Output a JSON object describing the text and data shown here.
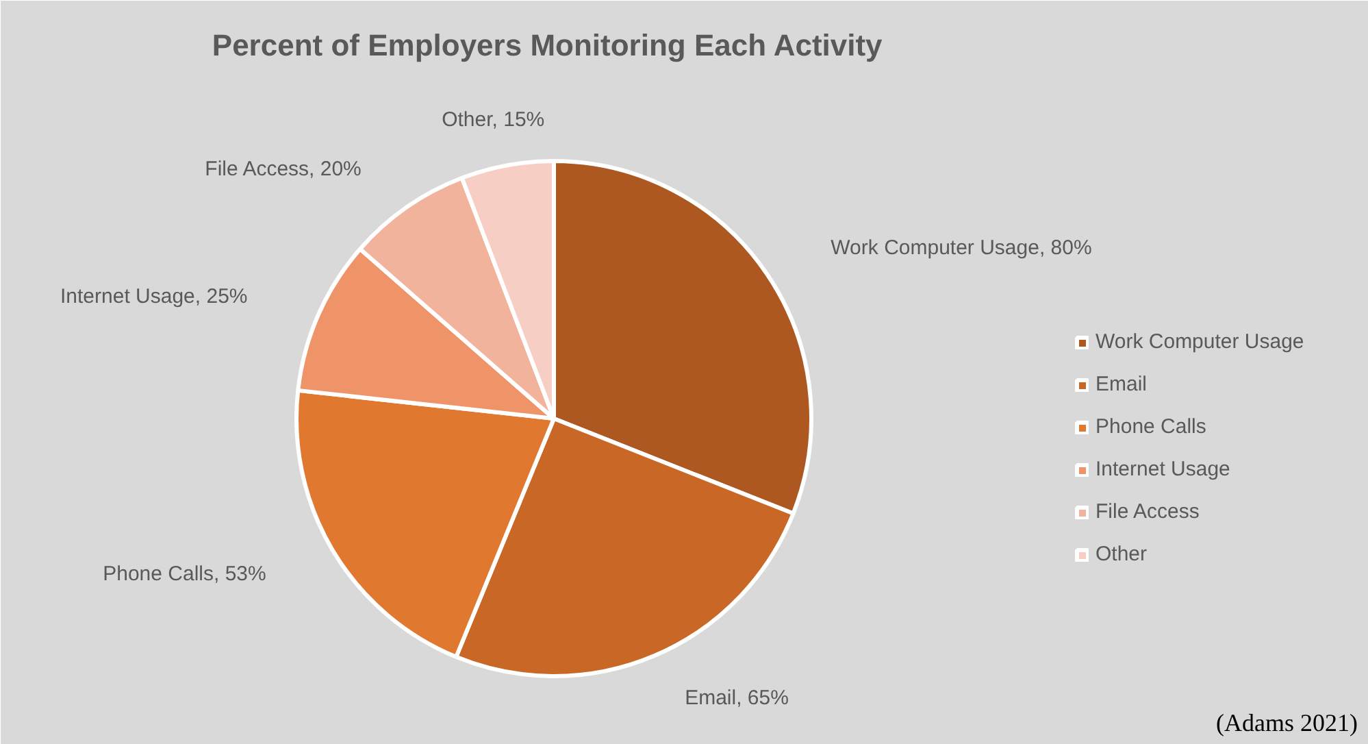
{
  "chart_data": {
    "type": "pie",
    "title": "Percent of Employers Monitoring Each Activity",
    "categories": [
      "Work Computer Usage",
      "Email",
      "Phone Calls",
      "Internet Usage",
      "File Access",
      "Other"
    ],
    "values": [
      80,
      65,
      53,
      25,
      20,
      15
    ],
    "colors": [
      "#ad5820",
      "#c96826",
      "#e07830",
      "#ef9468",
      "#f2b39d",
      "#f7cec3"
    ],
    "value_labels": [
      "Work Computer Usage, 80%",
      "Email, 65%",
      "Phone Calls, 53%",
      "Internet Usage, 25%",
      "File Access, 20%",
      "Other, 15%"
    ],
    "legend": "right",
    "annotations": [
      "(Adams 2021)"
    ]
  }
}
